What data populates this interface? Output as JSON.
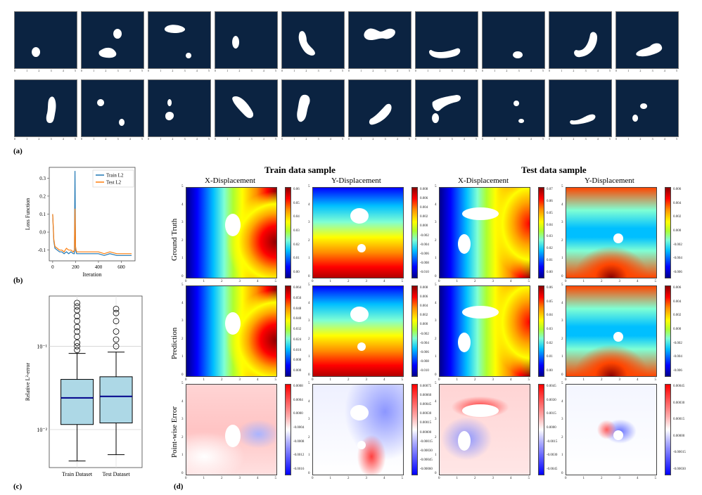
{
  "panel_labels": {
    "a": "(a)",
    "b": "(b)",
    "c": "(c)",
    "d": "(d)"
  },
  "shape_panel": {
    "tile_bg": "#0b2341",
    "tick_labels": [
      "0",
      "1",
      "2",
      "3",
      "4",
      "5"
    ]
  },
  "chart_data": [
    {
      "type": "line",
      "panel": "(b)",
      "xlabel": "Iteration",
      "ylabel": "Loss Function",
      "xlim": [
        -30,
        720
      ],
      "ylim": [
        -0.16,
        0.36
      ],
      "xticks": [
        "0",
        "200",
        "400",
        "600"
      ],
      "yticks": [
        "-0.1",
        "0.0",
        "0.1",
        "0.2",
        "0.3"
      ],
      "legend_position": "top-right",
      "series": [
        {
          "name": "Train L2",
          "color": "#1f77b4",
          "x": [
            0,
            10,
            20,
            40,
            60,
            80,
            100,
            120,
            140,
            160,
            180,
            190,
            195,
            200,
            205,
            210,
            230,
            260,
            300,
            340,
            400,
            450,
            500,
            560,
            620,
            690
          ],
          "y": [
            0.1,
            -0.05,
            -0.09,
            -0.1,
            -0.11,
            -0.11,
            -0.12,
            -0.11,
            -0.12,
            -0.11,
            -0.12,
            -0.12,
            0.34,
            -0.1,
            -0.11,
            -0.12,
            -0.12,
            -0.12,
            -0.12,
            -0.12,
            -0.12,
            -0.13,
            -0.12,
            -0.13,
            -0.13,
            -0.13
          ]
        },
        {
          "name": "Test L2",
          "color": "#ff7f0e",
          "x": [
            0,
            10,
            20,
            40,
            60,
            80,
            100,
            120,
            140,
            160,
            180,
            190,
            195,
            200,
            205,
            210,
            230,
            260,
            300,
            340,
            400,
            450,
            500,
            560,
            620,
            690
          ],
          "y": [
            0.1,
            -0.04,
            -0.08,
            -0.09,
            -0.1,
            -0.1,
            -0.11,
            -0.09,
            -0.1,
            -0.1,
            -0.11,
            -0.1,
            0.13,
            -0.08,
            -0.1,
            -0.11,
            -0.11,
            -0.11,
            -0.11,
            -0.11,
            -0.11,
            -0.12,
            -0.11,
            -0.12,
            -0.12,
            -0.12
          ]
        }
      ]
    },
    {
      "type": "box",
      "panel": "(c)",
      "ylabel": "Relative L²-error",
      "yscale": "log",
      "ylim": [
        0.0035,
        0.4
      ],
      "yticks": [
        "10⁻²",
        "10⁻¹"
      ],
      "grid": true,
      "box_color": "#add8e6",
      "median_color": "#00008b",
      "categories": [
        "Train Dataset",
        "Test Dataset"
      ],
      "boxes": [
        {
          "whisker_low": 0.0042,
          "q1": 0.0115,
          "median": 0.024,
          "q3": 0.04,
          "whisker_high": 0.082,
          "outliers": [
            0.09,
            0.1,
            0.11,
            0.13,
            0.15,
            0.17,
            0.2,
            0.23,
            0.27,
            0.3,
            0.33
          ]
        },
        {
          "whisker_low": 0.005,
          "q1": 0.012,
          "median": 0.025,
          "q3": 0.043,
          "whisker_high": 0.085,
          "outliers": [
            0.1,
            0.12,
            0.15,
            0.2,
            0.25,
            0.28
          ]
        }
      ]
    },
    {
      "type": "heatmap",
      "panel": "(d)",
      "group_titles": [
        "Train data sample",
        "Test data sample"
      ],
      "column_titles": [
        "X-Displacement",
        "Y-Displacement",
        "X-Displacement",
        "Y-Displacement"
      ],
      "row_titles": [
        "Ground Truth",
        "Prediction",
        "Point-wise Error"
      ],
      "axis_ticks": [
        "0",
        "1",
        "2",
        "3",
        "4",
        "5"
      ],
      "colorbars": [
        [
          "0.06",
          "0.05",
          "0.04",
          "0.03",
          "0.02",
          "0.01",
          "0.00"
        ],
        [
          "0.008",
          "0.006",
          "0.004",
          "0.002",
          "0.000",
          "-0.002",
          "-0.004",
          "-0.006",
          "-0.008",
          "-0.010"
        ],
        [
          "0.07",
          "0.06",
          "0.05",
          "0.04",
          "0.03",
          "0.02",
          "0.01",
          "0.00"
        ],
        [
          "0.006",
          "0.004",
          "0.002",
          "0.000",
          "-0.002",
          "-0.004",
          "-0.006"
        ],
        [
          "0.064",
          "0.056",
          "0.048",
          "0.040",
          "0.032",
          "0.024",
          "0.016",
          "0.008",
          "0.000"
        ],
        [
          "0.008",
          "0.006",
          "0.004",
          "0.002",
          "0.000",
          "-0.002",
          "-0.004",
          "-0.006",
          "-0.008",
          "-0.010"
        ],
        [
          "0.06",
          "0.05",
          "0.04",
          "0.03",
          "0.02",
          "0.01",
          "0.00"
        ],
        [
          "0.006",
          "0.004",
          "0.002",
          "0.000",
          "-0.002",
          "-0.004",
          "-0.006"
        ],
        [
          "0.0008",
          "0.0004",
          "0.0000",
          "-0.0004",
          "-0.0008",
          "-0.0012",
          "-0.0016"
        ],
        [
          "0.00075",
          "0.00060",
          "0.00045",
          "0.00030",
          "0.00015",
          "0.00000",
          "-0.00015",
          "-0.00030",
          "-0.00045",
          "-0.00060"
        ],
        [
          "0.0045",
          "0.0030",
          "0.0015",
          "0.0000",
          "-0.0015",
          "-0.0030",
          "-0.0045"
        ],
        [
          "0.00045",
          "0.00030",
          "0.00015",
          "0.00000",
          "-0.00015",
          "-0.00030"
        ]
      ]
    }
  ]
}
